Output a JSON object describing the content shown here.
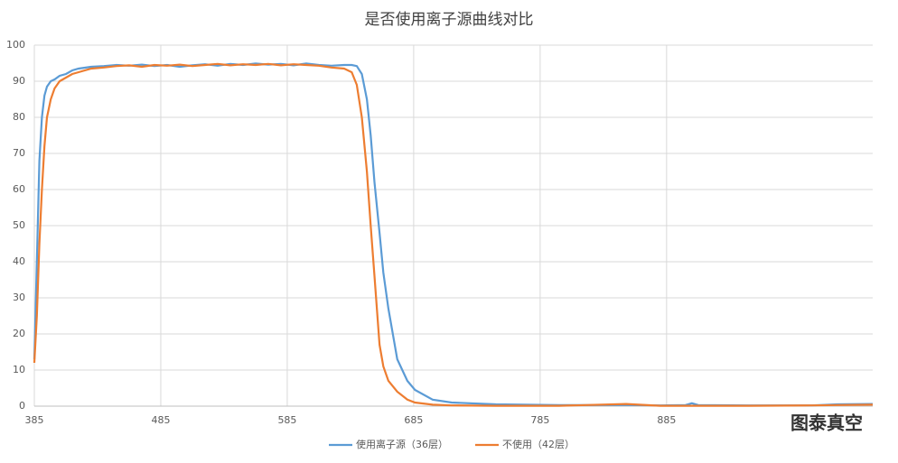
{
  "chart_data": {
    "type": "line",
    "title": "是否使用离子源曲线对比",
    "x": [
      385,
      387,
      389,
      391,
      393,
      395,
      398,
      401,
      405,
      410,
      415,
      420,
      430,
      440,
      450,
      460,
      470,
      480,
      490,
      500,
      510,
      520,
      530,
      540,
      550,
      560,
      570,
      580,
      590,
      600,
      610,
      620,
      630,
      636,
      640,
      644,
      648,
      651,
      654,
      658,
      661,
      665,
      672,
      680,
      686,
      700,
      715,
      750,
      800,
      853,
      880,
      900,
      905,
      910,
      950,
      1000,
      1020,
      1048
    ],
    "series": [
      {
        "name": "使用离子源（36层）",
        "color": "#5b9bd5",
        "values": [
          13,
          40,
          68,
          80,
          86,
          88.5,
          90,
          90.5,
          91.5,
          92,
          93,
          93.5,
          94,
          94.2,
          94.5,
          94.3,
          94.6,
          94.2,
          94.5,
          94,
          94.4,
          94.7,
          94.3,
          94.8,
          94.5,
          94.9,
          94.6,
          94.8,
          94.4,
          94.9,
          94.5,
          94.3,
          94.5,
          94.5,
          94.2,
          92,
          85,
          75,
          62,
          48,
          37,
          27,
          13,
          7,
          4.5,
          1.8,
          1,
          0.5,
          0.3,
          0.3,
          0.2,
          0.3,
          0.8,
          0.3,
          0.2,
          0.2,
          0.5,
          0.6
        ]
      },
      {
        "name": "不使用（42层）",
        "color": "#ed7d31",
        "values": [
          12,
          25,
          45,
          60,
          72,
          80,
          85,
          88,
          90,
          91,
          92,
          92.5,
          93.5,
          93.8,
          94.2,
          94.4,
          94,
          94.5,
          94.3,
          94.6,
          94.2,
          94.5,
          94.8,
          94.4,
          94.7,
          94.5,
          94.8,
          94.4,
          94.7,
          94.5,
          94.3,
          93.8,
          93.5,
          92.5,
          89,
          80,
          65,
          50,
          36,
          17,
          11,
          7,
          4,
          1.8,
          1,
          0.4,
          0.2,
          0.1,
          0.1,
          0.6,
          0.1,
          0.1,
          0.1,
          0.1,
          0.1,
          0.2,
          0.3,
          0.4
        ]
      }
    ],
    "xlim": [
      385,
      1048
    ],
    "xticks": [
      385,
      485,
      585,
      685,
      785,
      885
    ],
    "ylim": [
      0,
      100
    ],
    "yticks": [
      0,
      10,
      20,
      30,
      40,
      50,
      60,
      70,
      80,
      90,
      100
    ],
    "grid": true,
    "legend": "bottom",
    "watermark": "图泰真空"
  }
}
